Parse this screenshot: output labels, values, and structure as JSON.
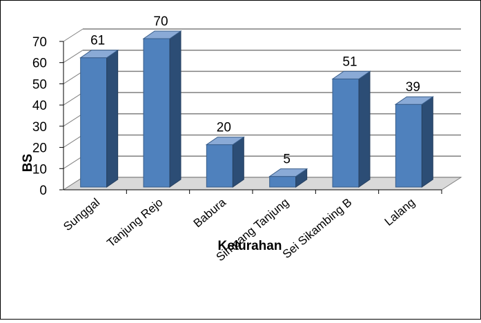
{
  "chart_data": {
    "type": "bar",
    "categories": [
      "Sunggal",
      "Tanjung Rejo",
      "Babura",
      "Simpang Tanjung",
      "Sei Sikambing B",
      "Lalang"
    ],
    "series": [
      {
        "values": [
          61,
          70,
          20,
          5,
          51,
          39
        ]
      }
    ],
    "data_labels": [
      "61",
      "70",
      "20",
      "5",
      "51",
      "39"
    ],
    "xlabel": "Kelurahan",
    "ylabel": "BS",
    "ylim": [
      0,
      70
    ],
    "yticks": [
      "0",
      "10",
      "20",
      "30",
      "40",
      "50",
      "60",
      "70"
    ],
    "grid": true,
    "legend": "none",
    "style": "3d-column",
    "colors": {
      "bar_front": "#4f81bd",
      "bar_side": "#2c4d75",
      "bar_top": "#8aaad6",
      "grid": "#7f7f7f",
      "floor": "#d9d9d9"
    }
  }
}
